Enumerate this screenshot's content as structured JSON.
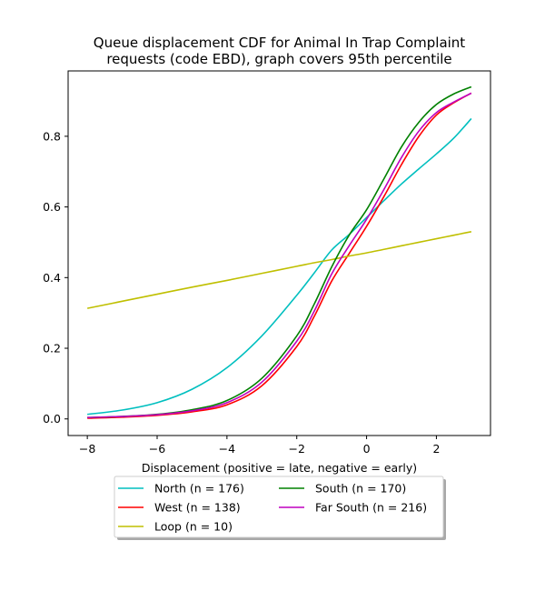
{
  "chart_data": {
    "type": "line",
    "title_lines": [
      "Queue displacement CDF for Animal In Trap Complaint",
      "requests (code EBD), graph covers 95th percentile"
    ],
    "xlabel": "Displacement (positive = late, negative = early)",
    "ylabel": "",
    "xlim": [
      -8.55,
      3.55
    ],
    "ylim": [
      -0.047,
      0.985
    ],
    "xticks": [
      -8,
      -6,
      -4,
      -2,
      0,
      2
    ],
    "xtick_labels": [
      "−8",
      "−6",
      "−4",
      "−2",
      "0",
      "2"
    ],
    "yticks": [
      0.0,
      0.2,
      0.4,
      0.6,
      0.8
    ],
    "ytick_labels": [
      "0.0",
      "0.2",
      "0.4",
      "0.6",
      "0.8"
    ],
    "grid": false,
    "legend_placement": "below plot, two columns",
    "x": [
      -8,
      -7,
      -6,
      -5,
      -4,
      -3,
      -2,
      -1.5,
      -1,
      -0.5,
      0,
      0.5,
      1,
      1.5,
      2,
      2.5,
      3
    ],
    "series": [
      {
        "name": "North (n = 176)",
        "color": "#00bfbf",
        "values": [
          0.013,
          0.025,
          0.046,
          0.084,
          0.145,
          0.235,
          0.35,
          0.413,
          0.478,
          0.522,
          0.57,
          0.618,
          0.665,
          0.708,
          0.75,
          0.795,
          0.85
        ]
      },
      {
        "name": "West (n = 138)",
        "color": "#ff0000",
        "values": [
          0.002,
          0.005,
          0.01,
          0.02,
          0.04,
          0.094,
          0.205,
          0.29,
          0.39,
          0.468,
          0.545,
          0.63,
          0.72,
          0.8,
          0.86,
          0.895,
          0.922
        ]
      },
      {
        "name": "Loop (n = 10)",
        "color": "#bfbf00",
        "values": [
          0.313,
          0.333,
          0.353,
          0.373,
          0.392,
          0.412,
          0.432,
          0.442,
          0.451,
          0.461,
          0.47,
          0.48,
          0.49,
          0.5,
          0.51,
          0.52,
          0.53
        ]
      },
      {
        "name": "South (n = 170)",
        "color": "#008000",
        "values": [
          0.004,
          0.007,
          0.013,
          0.026,
          0.052,
          0.115,
          0.235,
          0.325,
          0.43,
          0.52,
          0.592,
          0.68,
          0.77,
          0.84,
          0.89,
          0.92,
          0.94
        ]
      },
      {
        "name": "Far South (n = 216)",
        "color": "#bf00bf",
        "values": [
          0.004,
          0.007,
          0.012,
          0.023,
          0.046,
          0.104,
          0.22,
          0.305,
          0.41,
          0.49,
          0.565,
          0.65,
          0.74,
          0.815,
          0.867,
          0.897,
          0.922
        ]
      }
    ]
  }
}
